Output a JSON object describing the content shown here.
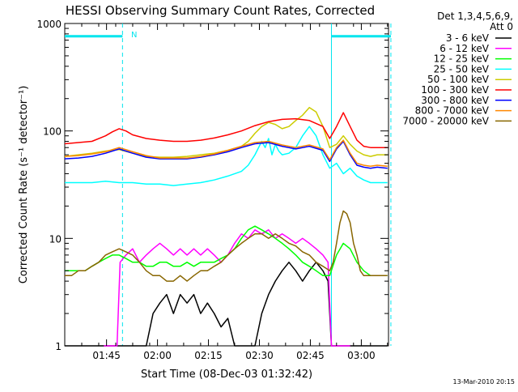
{
  "chart_data": {
    "type": "line",
    "title": "HESSI Observing Summary Count Rates, Corrected",
    "xlabel": "Start Time (08-Dec-03 01:32:42)",
    "ylabel": "Corrected Count Rate (s⁻¹ detector⁻¹)",
    "y_scale": "log",
    "ylim": [
      1,
      1000
    ],
    "xlim": [
      "01:32:42",
      "03:08:00"
    ],
    "x_unit": "minutes since 01:32:42",
    "x_ticks": [
      {
        "label": "01:45",
        "x": 12.3
      },
      {
        "label": "02:00",
        "x": 27.3
      },
      {
        "label": "02:15",
        "x": 42.3
      },
      {
        "label": "02:30",
        "x": 57.3
      },
      {
        "label": "02:45",
        "x": 72.3
      },
      {
        "label": "03:00",
        "x": 87.3
      }
    ],
    "y_ticks": [
      {
        "label": "1",
        "y": 1
      },
      {
        "label": "10",
        "y": 10
      },
      {
        "label": "100",
        "y": 100
      },
      {
        "label": "1000",
        "y": 1000
      }
    ],
    "legend": {
      "placement": "right",
      "header": "Det 1,3,4,5,6,9,",
      "subheader": "Att 0"
    },
    "annotations": {
      "top_bar_label": "N"
    },
    "status_intervals": [
      {
        "start": 0.0,
        "end": 17.0,
        "y": 760,
        "color": "#00e5ee"
      },
      {
        "start": 78.5,
        "end": 96.0,
        "y": 760,
        "color": "#00e5ee"
      }
    ],
    "vertical_markers": [
      {
        "x": 17.0,
        "color": "#00e5ee",
        "style": "dashed"
      },
      {
        "x": 78.5,
        "color": "#00e5ee",
        "style": "solid"
      },
      {
        "x": 96.0,
        "color": "#00e5ee",
        "style": "dashed"
      }
    ],
    "series": [
      {
        "name": "3 - 6 keV",
        "color": "#000000",
        "x": [
          0,
          11.5,
          12.4,
          15.4,
          15.6,
          16.3,
          16.5,
          22,
          24,
          26,
          28,
          30,
          32,
          34,
          36,
          38,
          40,
          42,
          44,
          46,
          48,
          50,
          52,
          54,
          56,
          58,
          60,
          62,
          64,
          66,
          68,
          70,
          72,
          74,
          76,
          77.5,
          78.5,
          80,
          82,
          84,
          86,
          88,
          90,
          92,
          95
        ],
        "values": [
          1,
          1,
          1,
          1,
          1,
          1,
          1,
          1,
          1,
          2,
          2.5,
          3,
          2,
          3,
          2.5,
          3,
          2,
          2.5,
          2,
          1.5,
          1.8,
          1,
          1,
          1,
          1,
          2,
          3,
          4,
          5,
          6,
          5,
          4,
          5,
          6,
          5,
          4,
          1,
          1,
          1,
          1,
          1,
          1,
          1,
          1,
          1
        ]
      },
      {
        "name": "6 - 12 keV",
        "color": "#ff00ff",
        "x": [
          11.5,
          12.4,
          15.4,
          16.3,
          18,
          20,
          22,
          24,
          26,
          28,
          30,
          32,
          34,
          36,
          38,
          40,
          42,
          44,
          46,
          48,
          50,
          52,
          54,
          56,
          58,
          60,
          62,
          64,
          66,
          68,
          70,
          72,
          74,
          76,
          77.5,
          78.5,
          80,
          82,
          84
        ],
        "values": [
          1,
          1,
          1,
          6,
          7,
          8,
          6,
          7,
          8,
          9,
          8,
          7,
          8,
          7,
          8,
          7,
          8,
          7,
          6,
          7,
          9,
          11,
          10,
          12,
          11,
          12,
          10,
          11,
          10,
          9,
          10,
          9,
          8,
          7,
          6,
          1,
          1,
          1,
          1
        ]
      },
      {
        "name": "12 - 25 keV",
        "color": "#00ff00",
        "x": [
          0,
          2,
          4,
          6,
          8,
          10,
          12,
          14,
          16,
          18,
          20,
          22,
          24,
          26,
          28,
          30,
          32,
          34,
          36,
          38,
          40,
          42,
          44,
          46,
          48,
          50,
          52,
          54,
          56,
          58,
          60,
          62,
          64,
          66,
          68,
          70,
          72,
          74,
          76,
          78,
          80,
          82,
          84,
          86,
          88,
          90,
          92,
          95
        ],
        "values": [
          5,
          5,
          5,
          5,
          5.5,
          6,
          6.5,
          7,
          7,
          6.5,
          6,
          6,
          5.5,
          5.5,
          6,
          6,
          5.5,
          5.5,
          6,
          5.5,
          6,
          6,
          6,
          6.5,
          7,
          8,
          10,
          12,
          13,
          12,
          11,
          10,
          9,
          8,
          7,
          6,
          5.5,
          5,
          4.5,
          4.5,
          7,
          9,
          8,
          6,
          5,
          4.5,
          4.5,
          4.5
        ]
      },
      {
        "name": "25 - 50 keV",
        "color": "#00ffff",
        "x": [
          0,
          4,
          8,
          12,
          16,
          20,
          24,
          28,
          32,
          36,
          40,
          44,
          48,
          52,
          54,
          56,
          58,
          59,
          60,
          61,
          62,
          63,
          64,
          66,
          68,
          70,
          72,
          74,
          76,
          78,
          80,
          82,
          84,
          86,
          88,
          90,
          92,
          95
        ],
        "values": [
          33,
          33,
          33,
          34,
          33,
          33,
          32,
          32,
          31,
          32,
          33,
          35,
          38,
          42,
          48,
          60,
          80,
          70,
          85,
          60,
          75,
          65,
          60,
          62,
          70,
          90,
          110,
          90,
          60,
          45,
          50,
          40,
          45,
          38,
          35,
          33,
          33,
          33
        ]
      },
      {
        "name": "50 - 100 keV",
        "color": "#cccc00",
        "x": [
          0,
          4,
          8,
          12,
          16,
          20,
          24,
          28,
          32,
          36,
          40,
          44,
          48,
          52,
          54,
          56,
          58,
          60,
          62,
          64,
          66,
          68,
          70,
          72,
          74,
          76,
          78,
          80,
          82,
          84,
          86,
          88,
          90,
          92,
          95
        ],
        "values": [
          58,
          60,
          62,
          65,
          67,
          62,
          58,
          57,
          57,
          58,
          60,
          62,
          66,
          72,
          80,
          95,
          110,
          120,
          115,
          105,
          110,
          125,
          140,
          165,
          150,
          110,
          70,
          75,
          90,
          75,
          65,
          60,
          58,
          60,
          60
        ]
      },
      {
        "name": "100 - 300 keV",
        "color": "#ff0000",
        "x": [
          0,
          4,
          8,
          12,
          14,
          16,
          18,
          20,
          24,
          28,
          32,
          36,
          40,
          44,
          48,
          52,
          56,
          60,
          64,
          68,
          72,
          76,
          78,
          80,
          82,
          84,
          86,
          88,
          90,
          92,
          95
        ],
        "values": [
          76,
          78,
          80,
          90,
          98,
          105,
          100,
          92,
          85,
          82,
          80,
          80,
          82,
          86,
          92,
          100,
          112,
          122,
          128,
          130,
          125,
          110,
          85,
          110,
          148,
          110,
          82,
          72,
          70,
          70,
          70
        ]
      },
      {
        "name": "300 - 800 keV",
        "color": "#0000ff",
        "x": [
          0,
          4,
          8,
          12,
          16,
          20,
          24,
          28,
          32,
          36,
          40,
          44,
          48,
          52,
          56,
          60,
          64,
          68,
          72,
          76,
          78,
          80,
          82,
          84,
          86,
          88,
          90,
          92,
          95
        ],
        "values": [
          55,
          56,
          58,
          62,
          68,
          62,
          57,
          55,
          55,
          55,
          57,
          60,
          64,
          70,
          76,
          78,
          72,
          68,
          72,
          66,
          52,
          68,
          80,
          60,
          48,
          46,
          45,
          46,
          45
        ]
      },
      {
        "name": "800 - 7000 keV",
        "color": "#ff8800",
        "x": [
          0,
          4,
          8,
          12,
          16,
          20,
          24,
          28,
          32,
          36,
          40,
          44,
          48,
          52,
          56,
          60,
          64,
          68,
          72,
          76,
          78,
          80,
          82,
          84,
          86,
          88,
          90,
          92,
          95
        ],
        "values": [
          58,
          59,
          61,
          64,
          70,
          64,
          59,
          56,
          56,
          56,
          58,
          61,
          66,
          72,
          78,
          80,
          74,
          70,
          74,
          68,
          54,
          70,
          82,
          62,
          50,
          48,
          47,
          48,
          47
        ]
      },
      {
        "name": "7000 - 20000 keV",
        "color": "#886600",
        "x": [
          0,
          2,
          4,
          6,
          8,
          10,
          12,
          14,
          16,
          18,
          20,
          22,
          24,
          26,
          28,
          30,
          32,
          34,
          36,
          38,
          40,
          42,
          44,
          46,
          48,
          50,
          52,
          54,
          56,
          58,
          60,
          62,
          64,
          66,
          68,
          70,
          72,
          74,
          76,
          78,
          79,
          80,
          81,
          82,
          83,
          84,
          85,
          86,
          87,
          88,
          90,
          92,
          95
        ],
        "values": [
          4.5,
          4.5,
          5,
          5,
          5.5,
          6,
          7,
          7.5,
          8,
          7.5,
          7,
          6,
          5,
          4.5,
          4.5,
          4,
          4,
          4.5,
          4,
          4.5,
          5,
          5,
          5.5,
          6,
          7,
          8,
          9,
          10,
          11,
          11,
          10,
          11,
          10,
          9,
          8.5,
          7.5,
          7,
          6,
          5.5,
          5,
          6,
          9,
          14,
          18,
          17,
          14,
          9,
          7,
          5,
          4.5,
          4.5,
          4.5,
          4.5
        ]
      }
    ]
  },
  "footer": {
    "timestamp": "13-Mar-2010 20:15"
  }
}
